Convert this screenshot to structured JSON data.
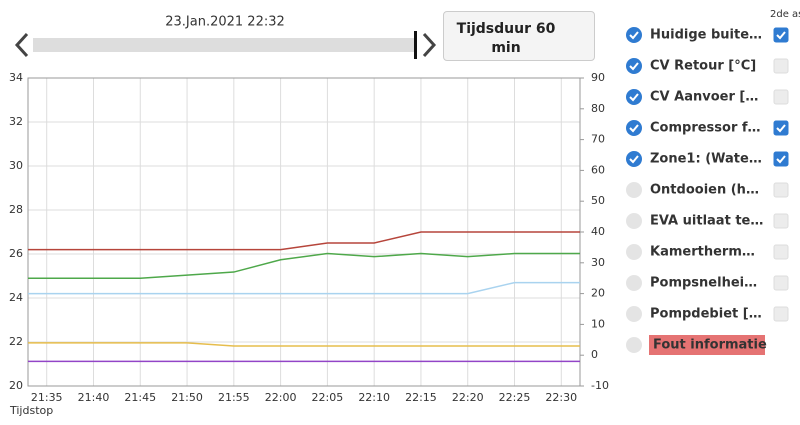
{
  "header": {
    "date": "23.Jan.2021 22:32",
    "duration_button": "Tijdsduur 60 min"
  },
  "panel": {
    "second_axis_header": "2de as",
    "error_button": "Fout informatie",
    "inactive_series": [
      {
        "name": "Ontdooien (h…",
        "color": "#e3d9a6"
      },
      {
        "name": "EVA uitlaat te…",
        "color": "#c5dcec"
      },
      {
        "name": "Kamertherm…",
        "color": "#d8a9a6"
      },
      {
        "name": "Pompsnelhei…",
        "color": "#acd6ac"
      },
      {
        "name": "Pompdebiet […",
        "color": "#c7a8dd"
      }
    ]
  },
  "chart_data": {
    "type": "line",
    "x_label": "Tijdstop",
    "x": [
      "21:33",
      "21:35",
      "21:40",
      "21:45",
      "21:50",
      "21:55",
      "22:00",
      "22:05",
      "22:10",
      "22:15",
      "22:20",
      "22:25",
      "22:30",
      "22:32"
    ],
    "xlim": [
      "21:33",
      "22:32"
    ],
    "xticks": [
      "21:35",
      "21:40",
      "21:45",
      "21:50",
      "21:55",
      "22:00",
      "22:05",
      "22:10",
      "22:15",
      "22:20",
      "22:25",
      "22:30"
    ],
    "ylim": [
      20,
      34
    ],
    "yticks": [
      20,
      22,
      24,
      26,
      28,
      30,
      32,
      34
    ],
    "y2lim": [
      -10,
      90
    ],
    "y2ticks": [
      -10,
      0,
      10,
      20,
      30,
      40,
      50,
      60,
      70,
      80,
      90
    ],
    "grid": true,
    "series": [
      {
        "name": "Huidige buite…",
        "color": "#e6bd4c",
        "axis": "y2",
        "values": [
          4,
          4,
          4,
          4,
          4,
          3,
          3,
          3,
          3,
          3,
          3,
          3,
          3,
          3
        ]
      },
      {
        "name": "CV Retour [°C]",
        "color": "#a9d3ef",
        "values": [
          24.2,
          24.2,
          24.2,
          24.2,
          24.2,
          24.2,
          24.2,
          24.2,
          24.2,
          24.2,
          24.2,
          24.7,
          24.7,
          24.7
        ]
      },
      {
        "name": "CV Aanvoer […",
        "color": "#b6453b",
        "values": [
          26.2,
          26.2,
          26.2,
          26.2,
          26.2,
          26.2,
          26.2,
          26.5,
          26.5,
          27,
          27,
          27,
          27,
          27
        ]
      },
      {
        "name": "Compressor f…",
        "color": "#4ea84a",
        "axis": "y2",
        "values": [
          25,
          25,
          25,
          25,
          26,
          27,
          31,
          33,
          32,
          33,
          32,
          33,
          33,
          33
        ]
      },
      {
        "name": "Zone1: (Wate…",
        "color": "#9245c7",
        "axis": "y2",
        "values": [
          -2,
          -2,
          -2,
          -2,
          -2,
          -2,
          -2,
          -2,
          -2,
          -2,
          -2,
          -2,
          -2,
          -2
        ]
      }
    ]
  }
}
